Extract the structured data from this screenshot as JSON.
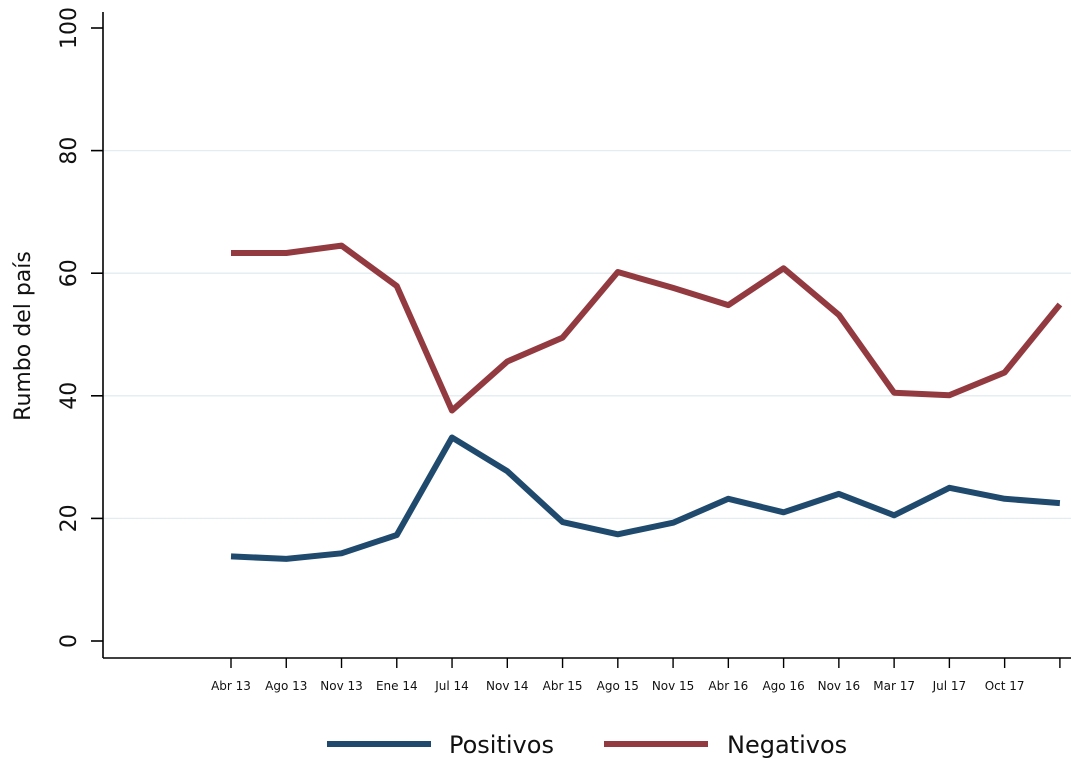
{
  "chart_data": {
    "type": "line",
    "ylabel": "Rumbo del país",
    "xlabel": "",
    "ylim": [
      0,
      100
    ],
    "yticks": [
      0,
      20,
      40,
      60,
      80,
      100
    ],
    "grid": true,
    "legend_position": "bottom",
    "categories": [
      "Abr 13",
      "Ago 13",
      "Nov 13",
      "Ene 14",
      "Jul 14",
      "Nov 14",
      "Abr 15",
      "Ago 15",
      "Nov 15",
      "Abr 16",
      "Ago 16",
      "Nov 16",
      "Mar 17",
      "Jul 17",
      "Oct 17",
      ""
    ],
    "series": [
      {
        "name": "Positivos",
        "color": "#1f4a6e",
        "values": [
          13.8,
          13.4,
          14.3,
          17.3,
          33.2,
          27.7,
          19.4,
          17.4,
          19.3,
          23.2,
          21.0,
          24.0,
          20.5,
          25.0,
          23.2,
          22.5
        ]
      },
      {
        "name": "Negativos",
        "color": "#923a3f",
        "values": [
          63.3,
          63.3,
          64.5,
          57.9,
          37.6,
          45.6,
          49.5,
          60.2,
          57.6,
          54.8,
          60.8,
          53.2,
          40.5,
          40.1,
          43.8,
          54.9
        ]
      }
    ]
  }
}
